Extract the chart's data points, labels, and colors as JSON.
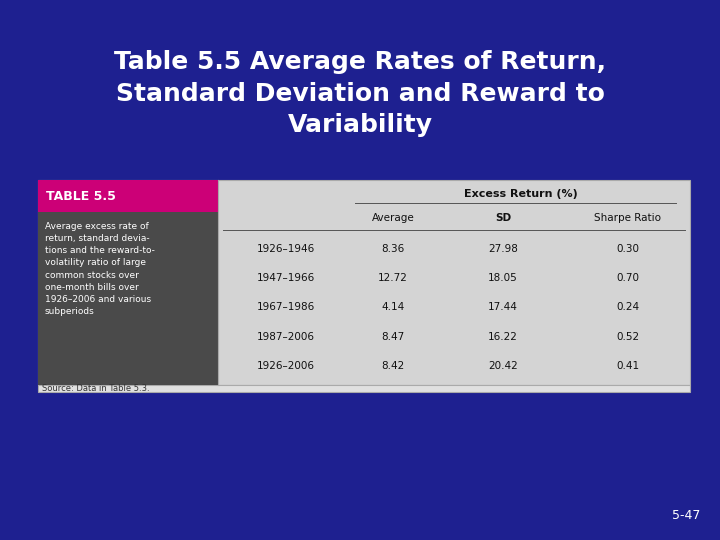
{
  "title_line1": "Table 5.5 Average Rates of Return,",
  "title_line2": "Standard Deviation and Reward to",
  "title_line3": "Variability",
  "bg_color": "#1e2090",
  "table_bg": "#d4d4d4",
  "left_top_color": "#cc0077",
  "left_bottom_color": "#4a4a4a",
  "left_panel_title": "TABLE 5.5",
  "left_panel_text": "Average excess rate of\nreturn, standard devia-\ntions and the reward-to-\nvolatility ratio of large\ncommon stocks over\none-month bills over\n1926–2006 and various\nsubperiods",
  "periods": [
    "1926–1946",
    "1947–1966",
    "1967–1986",
    "1987–2006",
    "1926–2006"
  ],
  "averages": [
    "8.36",
    "12.72",
    "4.14",
    "8.47",
    "8.42"
  ],
  "sds": [
    "27.98",
    "18.05",
    "17.44",
    "16.22",
    "20.42"
  ],
  "sharpe_ratios": [
    "0.30",
    "0.70",
    "0.24",
    "0.52",
    "0.41"
  ],
  "source_text": "Source: Data in Table 5.3.",
  "slide_number": "5-47",
  "title_color": "#ffffff",
  "title_fontsize": 18,
  "excess_return_label": "Excess Return (%)"
}
